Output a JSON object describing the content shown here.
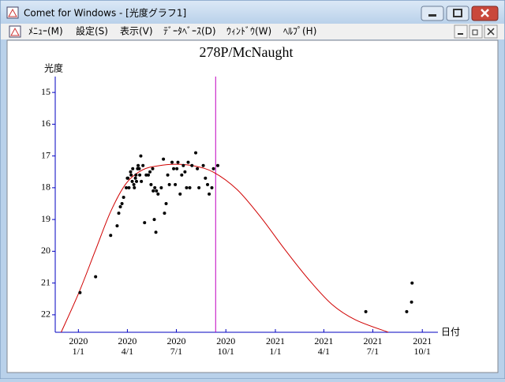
{
  "window": {
    "title": "Comet for Windows - [光度グラフ1]",
    "menu": [
      "ﾒﾆｭｰ(M)",
      "設定(S)",
      "表示(V)",
      "ﾃﾞｰﾀﾍﾞｰｽ(D)",
      "ｳｨﾝﾄﾞｳ(W)",
      "ﾍﾙﾌﾟ(H)"
    ]
  },
  "chart_data": {
    "type": "scatter",
    "title": "278P/McNaught",
    "ylabel": "光度",
    "xlabel": "日付",
    "color": "#000000",
    "axis_color": "#0000c0",
    "marker_date": "2020-09-12",
    "marker_color": "#c000c0",
    "xlim": [
      "2019-11-19",
      "2021-10-30"
    ],
    "ylim": [
      22.55,
      14.5
    ],
    "yticks": [
      15,
      16,
      17,
      18,
      19,
      20,
      21,
      22
    ],
    "xticks": [
      {
        "value": "2020-01-01",
        "label": [
          "2020",
          "1/1"
        ]
      },
      {
        "value": "2020-04-01",
        "label": [
          "2020",
          "4/1"
        ]
      },
      {
        "value": "2020-07-01",
        "label": [
          "2020",
          "7/1"
        ]
      },
      {
        "value": "2020-10-01",
        "label": [
          "2020",
          "10/1"
        ]
      },
      {
        "value": "2021-01-01",
        "label": [
          "2021",
          "1/1"
        ]
      },
      {
        "value": "2021-04-01",
        "label": [
          "2021",
          "4/1"
        ]
      },
      {
        "value": "2021-07-01",
        "label": [
          "2021",
          "7/1"
        ]
      },
      {
        "value": "2021-10-01",
        "label": [
          "2021",
          "10/1"
        ]
      }
    ],
    "x": [
      "2020-01-04",
      "2020-02-02",
      "2020-03-01",
      "2020-03-13",
      "2020-03-16",
      "2020-03-19",
      "2020-03-22",
      "2020-03-25",
      "2020-03-30",
      "2020-04-01",
      "2020-04-02",
      "2020-04-04",
      "2020-04-07",
      "2020-04-08",
      "2020-04-10",
      "2020-04-11",
      "2020-04-13",
      "2020-04-14",
      "2020-04-16",
      "2020-04-17",
      "2020-04-18",
      "2020-04-20",
      "2020-04-21",
      "2020-04-23",
      "2020-04-24",
      "2020-04-26",
      "2020-04-27",
      "2020-04-30",
      "2020-05-03",
      "2020-05-06",
      "2020-05-10",
      "2020-05-13",
      "2020-05-15",
      "2020-05-18",
      "2020-05-19",
      "2020-05-21",
      "2020-05-22",
      "2020-05-24",
      "2020-05-25",
      "2020-05-28",
      "2020-06-03",
      "2020-06-07",
      "2020-06-09",
      "2020-06-12",
      "2020-06-15",
      "2020-06-18",
      "2020-06-23",
      "2020-06-26",
      "2020-06-29",
      "2020-07-02",
      "2020-07-04",
      "2020-07-08",
      "2020-07-11",
      "2020-07-14",
      "2020-07-17",
      "2020-07-20",
      "2020-07-23",
      "2020-07-26",
      "2020-07-30",
      "2020-08-06",
      "2020-08-09",
      "2020-08-12",
      "2020-08-20",
      "2020-08-24",
      "2020-08-28",
      "2020-08-31",
      "2020-09-05",
      "2020-09-08",
      "2020-09-16",
      "2021-06-18",
      "2021-09-02",
      "2021-09-11",
      "2021-09-12"
    ],
    "values": [
      21.3,
      20.8,
      19.5,
      19.2,
      18.8,
      18.6,
      18.5,
      18.3,
      18.0,
      17.7,
      17.7,
      18.0,
      17.5,
      17.6,
      17.8,
      17.4,
      17.9,
      18.0,
      17.7,
      17.6,
      17.8,
      17.4,
      17.3,
      17.4,
      17.6,
      17.0,
      17.8,
      17.3,
      19.1,
      17.6,
      17.6,
      17.5,
      17.9,
      17.4,
      18.1,
      19.0,
      18.0,
      19.4,
      18.1,
      18.2,
      18.0,
      17.1,
      18.8,
      18.5,
      17.6,
      17.9,
      17.2,
      17.4,
      17.9,
      17.4,
      17.2,
      18.2,
      17.6,
      17.3,
      17.5,
      18.0,
      17.2,
      18.0,
      17.3,
      16.9,
      17.4,
      18.0,
      17.3,
      17.7,
      17.9,
      18.2,
      18.0,
      17.4,
      17.3,
      21.9,
      21.9,
      21.6,
      21.0
    ],
    "curve": {
      "color": "#d00000",
      "x": [
        "2019-11-30",
        "2020-01-02",
        "2020-02-01",
        "2020-03-01",
        "2020-03-30",
        "2020-04-29",
        "2020-05-28",
        "2020-06-29",
        "2020-08-02",
        "2020-09-08",
        "2020-10-22",
        "2020-12-05",
        "2021-01-18",
        "2021-03-03",
        "2021-04-16",
        "2021-05-30",
        "2021-07-30"
      ],
      "values": [
        22.55,
        21.3,
        20.0,
        18.75,
        17.86,
        17.44,
        17.31,
        17.26,
        17.31,
        17.51,
        18.06,
        18.93,
        19.93,
        20.87,
        21.67,
        22.16,
        22.55
      ]
    }
  }
}
